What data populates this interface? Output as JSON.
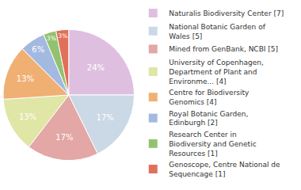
{
  "chart_data": {
    "type": "pie",
    "categories": [
      "Naturalis Biodiversity Center [7]",
      "National Botanic Garden of\nWales [5]",
      "Mined from GenBank, NCBI [5]",
      "University of Copenhagen,\nDepartment of Plant and\nEnvironme... [4]",
      "Centre for Biodiversity\nGenomics [4]",
      "Royal Botanic Garden,\nEdinburgh [2]",
      "Research Center in\nBiodiversity and Genetic\nResources [1]",
      "Genoscope, Centre National de\nSequencage [1]"
    ],
    "values": [
      24,
      17,
      17,
      13,
      13,
      6,
      3,
      3
    ],
    "value_labels": [
      "24%",
      "17%",
      "17%",
      "13%",
      "13%",
      "6%",
      "3%",
      "3%"
    ],
    "colors": [
      "#dfbfe0",
      "#cbd8e6",
      "#e3a7a5",
      "#dfe6a6",
      "#f0b074",
      "#a3b9e0",
      "#93c26f",
      "#e0705a"
    ],
    "data_labels": true,
    "legend": "right"
  }
}
